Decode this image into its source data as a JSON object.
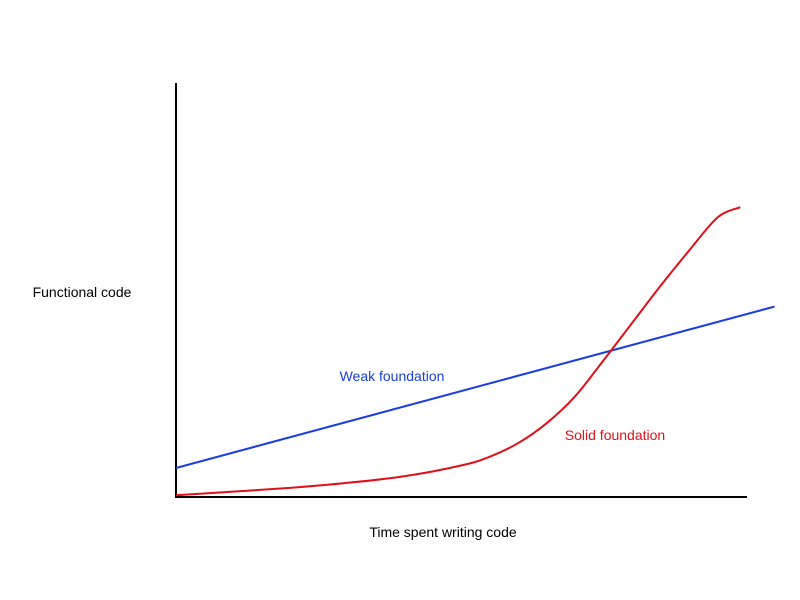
{
  "chart_data": {
    "type": "line",
    "title": "",
    "xlabel": "Time spent writing code",
    "ylabel": "Functional code",
    "xlim": [
      0,
      10
    ],
    "ylim": [
      0,
      10
    ],
    "grid": false,
    "legend": "none",
    "series": [
      {
        "name": "Weak foundation",
        "color": "#1a3ee0",
        "x": [
          0,
          10.5
        ],
        "y": [
          0.7,
          4.6
        ]
      },
      {
        "name": "Solid foundation",
        "color": "#e0101a",
        "x": [
          0,
          1,
          2,
          3,
          4,
          5,
          5.5,
          6,
          6.5,
          7,
          7.5,
          8,
          8.5,
          9,
          9.5,
          9.9
        ],
        "y": [
          0.04,
          0.13,
          0.22,
          0.34,
          0.5,
          0.76,
          0.97,
          1.3,
          1.78,
          2.43,
          3.3,
          4.2,
          5.1,
          5.95,
          6.75,
          7.0
        ]
      }
    ]
  }
}
